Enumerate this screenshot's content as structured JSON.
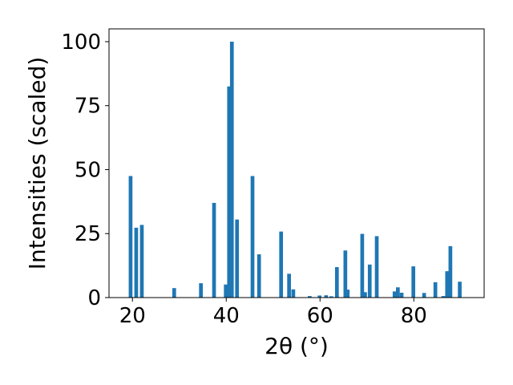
{
  "chart_data": {
    "type": "bar",
    "xlabel": "2θ (°)",
    "ylabel": "Intensities (scaled)",
    "xlim": [
      15,
      95
    ],
    "ylim": [
      0,
      105
    ],
    "xticks": [
      20,
      40,
      60,
      80
    ],
    "yticks": [
      0,
      25,
      50,
      75,
      100
    ],
    "xtick_labels": [
      "20",
      "40",
      "60",
      "80"
    ],
    "ytick_labels": [
      "0",
      "25",
      "50",
      "75",
      "100"
    ],
    "grid": false,
    "bar_color": "#1f77b4",
    "bar_width": 0.8,
    "x": [
      19.6,
      20.8,
      22.0,
      28.9,
      34.6,
      37.4,
      39.9,
      40.6,
      41.2,
      42.3,
      45.6,
      47.0,
      51.7,
      53.4,
      54.3,
      57.8,
      59.9,
      61.3,
      62.4,
      63.6,
      65.4,
      65.9,
      69.0,
      69.6,
      70.6,
      72.1,
      75.9,
      76.6,
      77.4,
      79.9,
      82.2,
      84.6,
      86.3,
      87.1,
      87.8,
      89.8
    ],
    "values": [
      47.5,
      27.3,
      28.4,
      3.7,
      5.6,
      37.0,
      5.1,
      82.5,
      100,
      30.5,
      47.5,
      16.9,
      25.8,
      9.3,
      3.2,
      0.6,
      0.8,
      0.9,
      0.5,
      11.9,
      18.4,
      3.1,
      24.9,
      2.1,
      12.9,
      24.0,
      2.4,
      4.0,
      1.9,
      12.2,
      1.8,
      6.0,
      0.6,
      10.3,
      20.1,
      6.2
    ]
  }
}
